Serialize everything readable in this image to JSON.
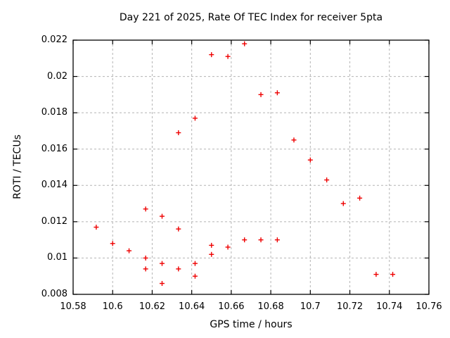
{
  "chart_data": {
    "type": "scatter",
    "title": "Day 221 of 2025, Rate Of TEC Index for receiver 5pta",
    "xlabel": "GPS time / hours",
    "ylabel": "ROTI / TECUs",
    "xlim": [
      10.58,
      10.76
    ],
    "ylim": [
      0.008,
      0.022
    ],
    "x_ticks": [
      10.58,
      10.6,
      10.62,
      10.64,
      10.66,
      10.68,
      10.7,
      10.72,
      10.74,
      10.76
    ],
    "x_tick_labels": [
      "10.58",
      "10.6",
      "10.62",
      "10.64",
      "10.66",
      "10.68",
      "10.7",
      "10.72",
      "10.74",
      "10.76"
    ],
    "y_ticks": [
      0.008,
      0.01,
      0.012,
      0.014,
      0.016,
      0.018,
      0.02,
      0.022
    ],
    "y_tick_labels": [
      "0.008",
      "0.01",
      "0.012",
      "0.014",
      "0.016",
      "0.018",
      "0.02",
      "0.022"
    ],
    "grid": true,
    "legend": false,
    "grid_color": "#b4b4b4",
    "axis_color": "#000000",
    "marker": {
      "shape": "plus",
      "color": "#ee0000",
      "size": 7
    },
    "points": [
      [
        10.5917,
        0.0117
      ],
      [
        10.6,
        0.0108
      ],
      [
        10.6083,
        0.0104
      ],
      [
        10.6167,
        0.0127
      ],
      [
        10.6167,
        0.01
      ],
      [
        10.6167,
        0.0094
      ],
      [
        10.625,
        0.0123
      ],
      [
        10.625,
        0.0097
      ],
      [
        10.625,
        0.0086
      ],
      [
        10.6333,
        0.0169
      ],
      [
        10.6333,
        0.0116
      ],
      [
        10.6333,
        0.0094
      ],
      [
        10.6417,
        0.0177
      ],
      [
        10.6417,
        0.0097
      ],
      [
        10.6417,
        0.009
      ],
      [
        10.65,
        0.0212
      ],
      [
        10.65,
        0.0107
      ],
      [
        10.65,
        0.0102
      ],
      [
        10.6583,
        0.0211
      ],
      [
        10.6583,
        0.0106
      ],
      [
        10.6667,
        0.0218
      ],
      [
        10.6667,
        0.011
      ],
      [
        10.675,
        0.019
      ],
      [
        10.675,
        0.011
      ],
      [
        10.6833,
        0.0191
      ],
      [
        10.6833,
        0.011
      ],
      [
        10.6917,
        0.0165
      ],
      [
        10.7,
        0.0154
      ],
      [
        10.7083,
        0.0143
      ],
      [
        10.7167,
        0.013
      ],
      [
        10.725,
        0.0133
      ],
      [
        10.7333,
        0.0091
      ],
      [
        10.7417,
        0.0091
      ]
    ]
  }
}
